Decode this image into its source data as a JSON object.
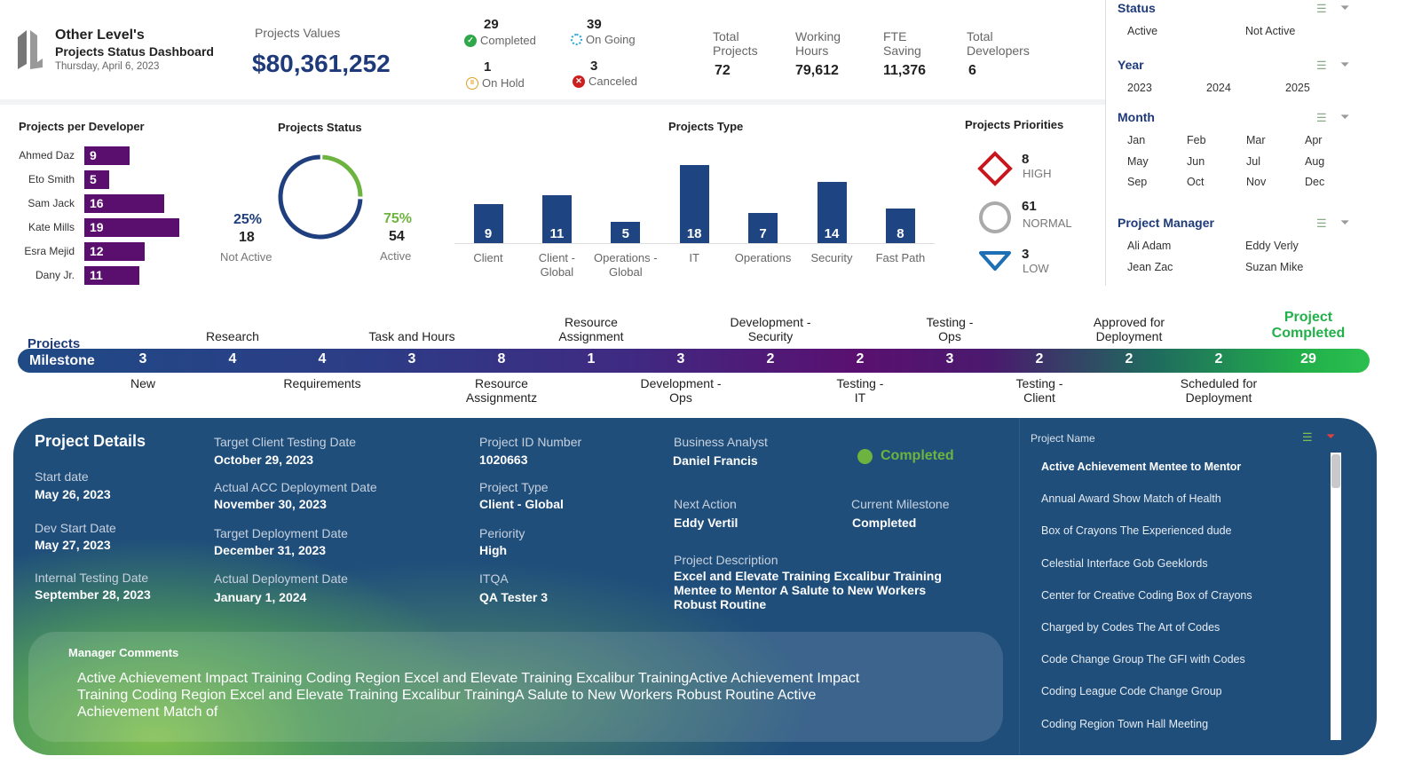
{
  "header": {
    "company": "Other Level's",
    "title": "Projects Status Dashboard",
    "date": "Thursday, April 6, 2023",
    "values_label": "Projects Values",
    "values_amount": "$80,361,252"
  },
  "status_counts": [
    {
      "count": "29",
      "label": "Completed",
      "icon": "check-circle-icon",
      "color": "#2ea84a"
    },
    {
      "count": "39",
      "label": "On Going",
      "icon": "spinner-icon",
      "color": "#2aa8d8"
    },
    {
      "count": "1",
      "label": "On Hold",
      "icon": "pause-circle-icon",
      "color": "#e0a020"
    },
    {
      "count": "3",
      "label": "Canceled",
      "icon": "x-circle-icon",
      "color": "#cc2020"
    }
  ],
  "kpis": [
    {
      "label": "Total Projects",
      "value": "72"
    },
    {
      "label": "Working Hours",
      "value": "79,612"
    },
    {
      "label": "FTE Saving",
      "value": "11,376"
    },
    {
      "label": "Total Developers",
      "value": "6"
    }
  ],
  "chart_data": [
    {
      "type": "bar",
      "orientation": "horizontal",
      "title": "Projects per Developer",
      "categories": [
        "Ahmed Daz",
        "Eto Smith",
        "Sam Jack",
        "Kate Mills",
        "Esra Mejid",
        "Dany Jr."
      ],
      "values": [
        9,
        5,
        16,
        19,
        12,
        11
      ],
      "color": "#5a0f6e"
    },
    {
      "type": "pie",
      "title": "Projects Status",
      "slices": [
        {
          "label": "Not Active",
          "value": 18,
          "percent": "25%",
          "color": "#1f3f7f"
        },
        {
          "label": "Active",
          "value": 54,
          "percent": "75%",
          "color": "#6db33f"
        }
      ]
    },
    {
      "type": "bar",
      "title": "Projects Type",
      "categories": [
        "Client",
        "Client - Global",
        "Operations - Global",
        "IT",
        "Operations",
        "Security",
        "Fast Path"
      ],
      "values": [
        9,
        11,
        5,
        18,
        7,
        14,
        8
      ],
      "color": "#1f4482"
    }
  ],
  "priorities": {
    "title": "Projects Priorities",
    "items": [
      {
        "value": "8",
        "label": "HIGH",
        "icon": "diamond-icon",
        "color": "#c8161d"
      },
      {
        "value": "61",
        "label": "NORMAL",
        "icon": "circle-icon",
        "color": "#aaaaaa"
      },
      {
        "value": "3",
        "label": "LOW",
        "icon": "triangle-down-icon",
        "color": "#1f6fb5"
      }
    ]
  },
  "filters": {
    "status": {
      "title": "Status",
      "items": [
        "Active",
        "Not Active"
      ]
    },
    "year": {
      "title": "Year",
      "items": [
        "2023",
        "2024",
        "2025"
      ]
    },
    "month": {
      "title": "Month",
      "items": [
        "Jan",
        "Feb",
        "Mar",
        "Apr",
        "May",
        "Jun",
        "Jul",
        "Aug",
        "Sep",
        "Oct",
        "Nov",
        "Dec"
      ]
    },
    "manager": {
      "title": "Project Manager",
      "items": [
        "Ali Adam",
        "Eddy Verly",
        "Jean Zac",
        "Suzan Mike"
      ]
    }
  },
  "milestone": {
    "title_top": "Projects",
    "title": "Milestone",
    "stages": [
      {
        "label": "New",
        "value": "3"
      },
      {
        "label": "Research",
        "value": "4"
      },
      {
        "label": "Requirements",
        "value": "4"
      },
      {
        "label": "Task and Hours",
        "value": "3"
      },
      {
        "label": "Resource Assignmentz",
        "value": "8"
      },
      {
        "label": "Resource Assignment",
        "value": "1"
      },
      {
        "label": "Development - Ops",
        "value": "3"
      },
      {
        "label": "Development - Security",
        "value": "2"
      },
      {
        "label": "Testing - IT",
        "value": "2"
      },
      {
        "label": "Testing - Ops",
        "value": "3"
      },
      {
        "label": "Testing - Client",
        "value": "2"
      },
      {
        "label": "Approved for Deployment",
        "value": "2"
      },
      {
        "label": "Scheduled for Deployment",
        "value": "2"
      },
      {
        "label": "Project Completed",
        "value": "29"
      }
    ],
    "completed_color": "#22b04a"
  },
  "details": {
    "title": "Project Details",
    "start_date": {
      "label": "Start date",
      "value": "May 26, 2023"
    },
    "dev_start": {
      "label": "Dev Start Date",
      "value": "May 27, 2023"
    },
    "internal_testing": {
      "label": "Internal Testing Date",
      "value": "September 28, 2023"
    },
    "target_client_testing": {
      "label": "Target Client Testing Date",
      "value": "October 29, 2023"
    },
    "actual_acc": {
      "label": "Actual ACC Deployment Date",
      "value": "November 30, 2023"
    },
    "target_deploy": {
      "label": "Target Deployment Date",
      "value": "December 31, 2023"
    },
    "actual_deploy": {
      "label": "Actual Deployment Date",
      "value": "January 1, 2024"
    },
    "project_id": {
      "label": "Project ID Number",
      "value": "1020663"
    },
    "project_type": {
      "label": "Project Type",
      "value": "Client - Global"
    },
    "priority": {
      "label": "Periority",
      "value": "High"
    },
    "itqa": {
      "label": "ITQA",
      "value": "QA Tester 3"
    },
    "analyst": {
      "label": "Business Analyst",
      "value": "Daniel Francis"
    },
    "status": "Completed",
    "next_action": {
      "label": "Next Action",
      "value": "Eddy Vertil"
    },
    "current_milestone": {
      "label": "Current Milestone",
      "value": "Completed"
    },
    "description": {
      "label": "Project Description",
      "lines": [
        "Excel and Elevate Training Excalibur Training",
        "Mentee to Mentor A Salute to New Workers",
        "Robust Routine"
      ]
    },
    "comments": {
      "label": "Manager Comments",
      "text": "Active Achievement Impact Training Coding Region Excel and Elevate Training Excalibur TrainingActive Achievement Impact Training Coding Region Excel and Elevate Training Excalibur TrainingA Salute to New Workers Robust Routine Active Achievement Match of"
    }
  },
  "project_list": {
    "title": "Project Name",
    "selected": 0,
    "items": [
      "Active Achievement Mentee to Mentor",
      "Annual Award Show Match of Health",
      "Box of Crayons The Experienced dude",
      "Celestial Interface Gob Geeklords",
      "Center for Creative Coding Box of Crayons",
      "Charged by Codes The Art of Codes",
      "Code Change Group The GFI with Codes",
      "Coding League Code Change Group",
      "Coding Region Town Hall Meeting"
    ]
  }
}
